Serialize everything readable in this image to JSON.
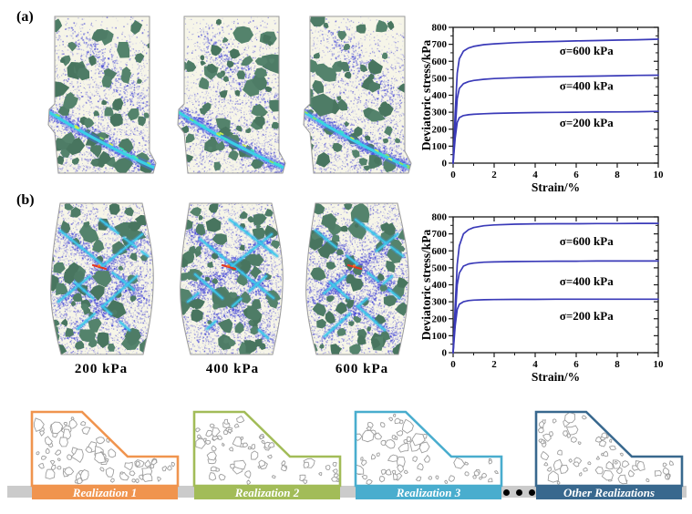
{
  "figure_labels": {
    "panel_a": "(a)",
    "panel_b": "(b)"
  },
  "specimen_captions": [
    "200 kPa",
    "400 kPa",
    "600 kPa"
  ],
  "chart_data": [
    {
      "id": "a",
      "type": "line",
      "title": "",
      "xlabel": "Strain/%",
      "ylabel": "Deviatoric stress/kPa",
      "xlim": [
        0,
        10
      ],
      "ylim": [
        0,
        800
      ],
      "xticks": [
        0,
        2,
        4,
        6,
        8,
        10
      ],
      "yticks": [
        0,
        100,
        200,
        300,
        400,
        500,
        600,
        700,
        800
      ],
      "grid": false,
      "x": [
        0,
        0.1,
        0.2,
        0.3,
        0.5,
        0.75,
        1,
        1.5,
        2,
        3,
        4,
        5,
        6,
        7,
        8,
        9,
        10
      ],
      "series": [
        {
          "name": "σ=600 kPa",
          "values": [
            0,
            300,
            530,
            615,
            660,
            678,
            688,
            698,
            703,
            710,
            714,
            717,
            720,
            722,
            725,
            727,
            730
          ]
        },
        {
          "name": "σ=400 kPa",
          "values": [
            0,
            200,
            380,
            440,
            468,
            480,
            487,
            494,
            498,
            503,
            507,
            509,
            511,
            513,
            515,
            517,
            518
          ]
        },
        {
          "name": "σ=200 kPa",
          "values": [
            0,
            150,
            240,
            268,
            280,
            285,
            288,
            291,
            293,
            296,
            298,
            299,
            300,
            301,
            302,
            303,
            305
          ]
        }
      ],
      "annotations": [
        {
          "text": "σ=600 kPa",
          "x": 6.5,
          "y": 660
        },
        {
          "text": "σ=400 kPa",
          "x": 6.5,
          "y": 455
        },
        {
          "text": "σ=200 kPa",
          "x": 6.5,
          "y": 235
        }
      ],
      "line_color": "#3a3ab8"
    },
    {
      "id": "b",
      "type": "line",
      "title": "",
      "xlabel": "Strain/%",
      "ylabel": "Deviatoric stress/kPa",
      "xlim": [
        0,
        10
      ],
      "ylim": [
        0,
        800
      ],
      "xticks": [
        0,
        2,
        4,
        6,
        8,
        10
      ],
      "yticks": [
        0,
        100,
        200,
        300,
        400,
        500,
        600,
        700,
        800
      ],
      "grid": false,
      "x": [
        0,
        0.1,
        0.2,
        0.3,
        0.5,
        0.75,
        1,
        1.5,
        2,
        3,
        4,
        5,
        6,
        7,
        8,
        9,
        10
      ],
      "series": [
        {
          "name": "σ=600 kPa",
          "values": [
            0,
            280,
            520,
            630,
            700,
            725,
            737,
            748,
            753,
            757,
            759,
            760,
            760,
            761,
            761,
            762,
            762
          ]
        },
        {
          "name": "σ=400 kPa",
          "values": [
            0,
            210,
            400,
            470,
            510,
            523,
            528,
            533,
            535,
            537,
            538,
            539,
            539,
            540,
            540,
            540,
            540
          ]
        },
        {
          "name": "σ=200 kPa",
          "values": [
            0,
            160,
            255,
            285,
            300,
            307,
            310,
            312,
            313,
            314,
            314,
            315,
            315,
            315,
            315,
            315,
            315
          ]
        }
      ],
      "annotations": [
        {
          "text": "σ=600 kPa",
          "x": 6.5,
          "y": 655
        },
        {
          "text": "σ=400 kPa",
          "x": 6.5,
          "y": 420
        },
        {
          "text": "σ=200 kPa",
          "x": 6.5,
          "y": 215
        }
      ],
      "line_color": "#3a3ab8"
    }
  ],
  "realizations": {
    "items": [
      {
        "label": "Realization 1",
        "color": "#F0944E"
      },
      {
        "label": "Realization 2",
        "color": "#A2BC58"
      },
      {
        "label": "Realization 3",
        "color": "#49ADCE"
      },
      {
        "label": "Other Realizations",
        "color": "#38688E"
      }
    ],
    "ellipsis_dots": 3
  },
  "palette": {
    "specimen_background": "#f6f5e8",
    "specimen_particle_green": "#4e7c66",
    "specimen_speckle_blue": "#4846d2",
    "specimen_speckle_light": "#9a98e8",
    "shear_band_cyan": "#39cfe8",
    "band_hotspot_red": "#e5331f",
    "connector_gray": "#cbcbcb",
    "axis_color": "#1a1a1a"
  }
}
